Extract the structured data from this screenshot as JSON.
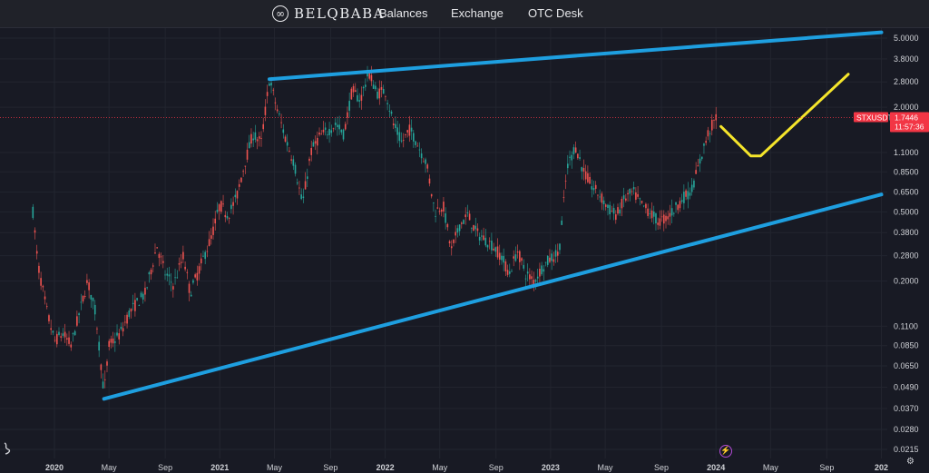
{
  "header": {
    "brand": "BELQBABA",
    "nav": [
      "Balances",
      "Exchange",
      "OTC Desk"
    ]
  },
  "price_tag": {
    "symbol": "STXUSDT",
    "price": "1.7446",
    "countdown": "11:57:36",
    "color": "#f23645"
  },
  "colors": {
    "background": "#181a24",
    "bull": "#26a69a",
    "bear": "#ef5350",
    "trendline": "#1e9fe0",
    "projection": "#f5e52b"
  },
  "chart_data": {
    "type": "candlestick",
    "symbol": "STXUSDT",
    "y_scale": "log",
    "y_ticks": [
      "5.0000",
      "3.8000",
      "2.8000",
      "2.0000",
      "1.1000",
      "0.8500",
      "0.6500",
      "0.5000",
      "0.3800",
      "0.2800",
      "0.2000",
      "0.1100",
      "0.0850",
      "0.0650",
      "0.0490",
      "0.0370",
      "0.0280",
      "0.0215"
    ],
    "x_ticks": [
      {
        "t": 2020.0,
        "label": "2020",
        "bold": true
      },
      {
        "t": 2020.33,
        "label": "May",
        "bold": false
      },
      {
        "t": 2020.67,
        "label": "Sep",
        "bold": false
      },
      {
        "t": 2021.0,
        "label": "2021",
        "bold": true
      },
      {
        "t": 2021.33,
        "label": "May",
        "bold": false
      },
      {
        "t": 2021.67,
        "label": "Sep",
        "bold": false
      },
      {
        "t": 2022.0,
        "label": "2022",
        "bold": true
      },
      {
        "t": 2022.33,
        "label": "May",
        "bold": false
      },
      {
        "t": 2022.67,
        "label": "Sep",
        "bold": false
      },
      {
        "t": 2023.0,
        "label": "2023",
        "bold": true
      },
      {
        "t": 2023.33,
        "label": "May",
        "bold": false
      },
      {
        "t": 2023.67,
        "label": "Sep",
        "bold": false
      },
      {
        "t": 2024.0,
        "label": "2024",
        "bold": true
      },
      {
        "t": 2024.33,
        "label": "May",
        "bold": false
      },
      {
        "t": 2024.67,
        "label": "Sep",
        "bold": false
      },
      {
        "t": 2025.0,
        "label": "202",
        "bold": true
      }
    ],
    "last_price": 1.7446,
    "price_path": [
      [
        2019.87,
        0.5
      ],
      [
        2019.9,
        0.25
      ],
      [
        2019.95,
        0.14
      ],
      [
        2020.0,
        0.09
      ],
      [
        2020.05,
        0.1
      ],
      [
        2020.1,
        0.085
      ],
      [
        2020.15,
        0.13
      ],
      [
        2020.2,
        0.2
      ],
      [
        2020.25,
        0.13
      ],
      [
        2020.3,
        0.045
      ],
      [
        2020.33,
        0.085
      ],
      [
        2020.4,
        0.1
      ],
      [
        2020.45,
        0.13
      ],
      [
        2020.5,
        0.15
      ],
      [
        2020.55,
        0.17
      ],
      [
        2020.62,
        0.32
      ],
      [
        2020.67,
        0.22
      ],
      [
        2020.72,
        0.19
      ],
      [
        2020.78,
        0.28
      ],
      [
        2020.82,
        0.17
      ],
      [
        2020.9,
        0.27
      ],
      [
        2020.95,
        0.36
      ],
      [
        2021.0,
        0.55
      ],
      [
        2021.05,
        0.48
      ],
      [
        2021.1,
        0.6
      ],
      [
        2021.15,
        0.95
      ],
      [
        2021.2,
        1.4
      ],
      [
        2021.25,
        1.25
      ],
      [
        2021.3,
        2.9
      ],
      [
        2021.35,
        1.9
      ],
      [
        2021.4,
        1.3
      ],
      [
        2021.45,
        0.95
      ],
      [
        2021.5,
        0.55
      ],
      [
        2021.55,
        1.1
      ],
      [
        2021.6,
        1.35
      ],
      [
        2021.65,
        1.45
      ],
      [
        2021.7,
        1.6
      ],
      [
        2021.75,
        1.4
      ],
      [
        2021.8,
        2.5
      ],
      [
        2021.85,
        2.2
      ],
      [
        2021.9,
        3.2
      ],
      [
        2021.95,
        2.4
      ],
      [
        2022.0,
        2.5
      ],
      [
        2022.05,
        1.6
      ],
      [
        2022.1,
        1.25
      ],
      [
        2022.15,
        1.5
      ],
      [
        2022.2,
        1.2
      ],
      [
        2022.25,
        0.95
      ],
      [
        2022.3,
        0.5
      ],
      [
        2022.35,
        0.55
      ],
      [
        2022.4,
        0.3
      ],
      [
        2022.45,
        0.42
      ],
      [
        2022.5,
        0.48
      ],
      [
        2022.55,
        0.38
      ],
      [
        2022.6,
        0.35
      ],
      [
        2022.65,
        0.32
      ],
      [
        2022.7,
        0.28
      ],
      [
        2022.75,
        0.22
      ],
      [
        2022.8,
        0.3
      ],
      [
        2022.85,
        0.22
      ],
      [
        2022.9,
        0.2
      ],
      [
        2022.95,
        0.24
      ],
      [
        2023.0,
        0.27
      ],
      [
        2023.05,
        0.29
      ],
      [
        2023.1,
        0.9
      ],
      [
        2023.15,
        1.2
      ],
      [
        2023.2,
        0.85
      ],
      [
        2023.25,
        0.7
      ],
      [
        2023.3,
        0.62
      ],
      [
        2023.35,
        0.52
      ],
      [
        2023.4,
        0.48
      ],
      [
        2023.45,
        0.6
      ],
      [
        2023.5,
        0.65
      ],
      [
        2023.55,
        0.55
      ],
      [
        2023.6,
        0.5
      ],
      [
        2023.65,
        0.44
      ],
      [
        2023.7,
        0.46
      ],
      [
        2023.75,
        0.52
      ],
      [
        2023.8,
        0.6
      ],
      [
        2023.85,
        0.66
      ],
      [
        2023.9,
        0.95
      ],
      [
        2023.95,
        1.4
      ],
      [
        2024.0,
        1.7446
      ]
    ],
    "trendlines": [
      {
        "name": "upper",
        "from": [
          2021.3,
          2.9
        ],
        "to": [
          2025.0,
          5.4
        ]
      },
      {
        "name": "lower",
        "from": [
          2020.3,
          0.042
        ],
        "to": [
          2025.0,
          0.63
        ]
      }
    ],
    "projection": [
      [
        2024.03,
        1.55
      ],
      [
        2024.21,
        1.05
      ],
      [
        2024.27,
        1.05
      ],
      [
        2024.8,
        3.1
      ]
    ]
  }
}
